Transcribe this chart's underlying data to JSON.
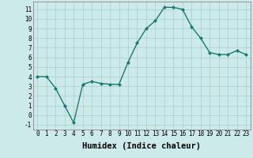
{
  "x": [
    0,
    1,
    2,
    3,
    4,
    5,
    6,
    7,
    8,
    9,
    10,
    11,
    12,
    13,
    14,
    15,
    16,
    17,
    18,
    19,
    20,
    21,
    22,
    23
  ],
  "y": [
    4.0,
    4.0,
    2.8,
    1.0,
    -0.8,
    3.2,
    3.5,
    3.3,
    3.2,
    3.2,
    5.5,
    7.5,
    9.0,
    9.8,
    11.2,
    11.2,
    11.0,
    9.2,
    8.0,
    6.5,
    6.3,
    6.3,
    6.7,
    6.3
  ],
  "line_color": "#1a7a6e",
  "marker": "D",
  "marker_size": 2.0,
  "bg_color": "#cceaea",
  "grid_color": "#aacccc",
  "xlabel": "Humidex (Indice chaleur)",
  "ylim": [
    -1.5,
    11.8
  ],
  "xlim": [
    -0.5,
    23.5
  ],
  "yticks": [
    -1,
    0,
    1,
    2,
    3,
    4,
    5,
    6,
    7,
    8,
    9,
    10,
    11
  ],
  "xticks": [
    0,
    1,
    2,
    3,
    4,
    5,
    6,
    7,
    8,
    9,
    10,
    11,
    12,
    13,
    14,
    15,
    16,
    17,
    18,
    19,
    20,
    21,
    22,
    23
  ],
  "tick_fontsize": 5.5,
  "xlabel_fontsize": 7.5,
  "linewidth": 1.0
}
